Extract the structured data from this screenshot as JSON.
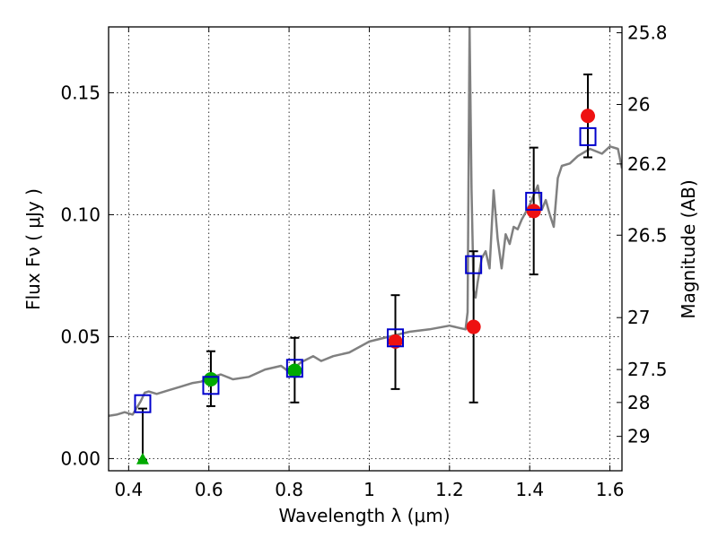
{
  "chart_data": {
    "type": "scatter",
    "xlabel": "Wavelength  λ (μm)",
    "ylabel_left": "Flux  Fν  ( μJy )",
    "ylabel_right": "Magnitude (AB)",
    "xlim": [
      0.35,
      1.63
    ],
    "ylim": [
      -0.005,
      0.177
    ],
    "grid": true,
    "x_ticks": [
      0.4,
      0.6,
      0.8,
      1.0,
      1.2,
      1.4,
      1.6
    ],
    "x_tick_labels": [
      "0.4",
      "0.6",
      "0.8",
      "1",
      "1.2",
      "1.4",
      "1.6"
    ],
    "y_ticks": [
      0.0,
      0.05,
      0.1,
      0.15
    ],
    "y_tick_labels": [
      "0.00",
      "0.05",
      "0.10",
      "0.15"
    ],
    "right_ticks": [
      {
        "label": "25.8",
        "flux": 0.1746
      },
      {
        "label": "26",
        "flux": 0.1452
      },
      {
        "label": "26.2",
        "flux": 0.1208
      },
      {
        "label": "26.5",
        "flux": 0.0916
      },
      {
        "label": "27",
        "flux": 0.0578
      },
      {
        "label": "27.5",
        "flux": 0.0365
      },
      {
        "label": "28",
        "flux": 0.023
      },
      {
        "label": "29",
        "flux": 0.0091
      }
    ],
    "series": [
      {
        "marker": "circle",
        "color": "#00aa00",
        "points": [
          {
            "x": 0.605,
            "y": 0.0325,
            "yerr_low": 0.0215,
            "yerr_high": 0.044
          },
          {
            "x": 0.814,
            "y": 0.036,
            "yerr_low": 0.023,
            "yerr_high": 0.0495
          }
        ]
      },
      {
        "marker": "triangle",
        "color": "#00aa00",
        "points": [
          {
            "x": 0.435,
            "y": -0.0005,
            "yerr_low": -0.0005,
            "yerr_high": 0.0205
          }
        ]
      },
      {
        "marker": "circle",
        "color": "#ee1111",
        "points": [
          {
            "x": 1.065,
            "y": 0.048,
            "yerr_low": 0.0285,
            "yerr_high": 0.067
          },
          {
            "x": 1.26,
            "y": 0.054,
            "yerr_low": 0.023,
            "yerr_high": 0.085
          },
          {
            "x": 1.41,
            "y": 0.1015,
            "yerr_low": 0.0755,
            "yerr_high": 0.1275
          },
          {
            "x": 1.545,
            "y": 0.1405,
            "yerr_low": 0.1235,
            "yerr_high": 0.1575
          }
        ]
      },
      {
        "marker": "square-open",
        "color": "#0000cc",
        "points": [
          {
            "x": 0.435,
            "y": 0.0225
          },
          {
            "x": 0.605,
            "y": 0.03
          },
          {
            "x": 0.814,
            "y": 0.037
          },
          {
            "x": 1.065,
            "y": 0.0495
          },
          {
            "x": 1.26,
            "y": 0.0795
          },
          {
            "x": 1.41,
            "y": 0.1055
          },
          {
            "x": 1.545,
            "y": 0.132
          }
        ]
      }
    ],
    "model_spectrum": {
      "color": "#808080",
      "x": [
        0.35,
        0.37,
        0.39,
        0.41,
        0.43,
        0.44,
        0.45,
        0.47,
        0.5,
        0.53,
        0.56,
        0.58,
        0.6,
        0.63,
        0.66,
        0.7,
        0.74,
        0.78,
        0.8,
        0.83,
        0.86,
        0.88,
        0.91,
        0.95,
        1.0,
        1.05,
        1.1,
        1.15,
        1.2,
        1.24,
        1.245,
        1.25,
        1.255,
        1.26,
        1.265,
        1.27,
        1.28,
        1.29,
        1.3,
        1.31,
        1.32,
        1.33,
        1.34,
        1.35,
        1.36,
        1.37,
        1.38,
        1.39,
        1.4,
        1.41,
        1.42,
        1.43,
        1.44,
        1.45,
        1.46,
        1.47,
        1.48,
        1.5,
        1.52,
        1.55,
        1.58,
        1.6,
        1.62,
        1.63
      ],
      "y": [
        0.0175,
        0.018,
        0.019,
        0.018,
        0.0235,
        0.027,
        0.0275,
        0.0265,
        0.028,
        0.0295,
        0.031,
        0.0315,
        0.033,
        0.0345,
        0.0325,
        0.0335,
        0.0365,
        0.038,
        0.0355,
        0.0395,
        0.042,
        0.04,
        0.042,
        0.0435,
        0.048,
        0.05,
        0.052,
        0.053,
        0.0545,
        0.053,
        0.06,
        0.177,
        0.11,
        0.069,
        0.066,
        0.072,
        0.082,
        0.085,
        0.078,
        0.11,
        0.09,
        0.078,
        0.092,
        0.088,
        0.095,
        0.094,
        0.098,
        0.101,
        0.104,
        0.108,
        0.112,
        0.102,
        0.106,
        0.1,
        0.095,
        0.115,
        0.12,
        0.121,
        0.124,
        0.127,
        0.125,
        0.128,
        0.127,
        0.119
      ]
    }
  }
}
